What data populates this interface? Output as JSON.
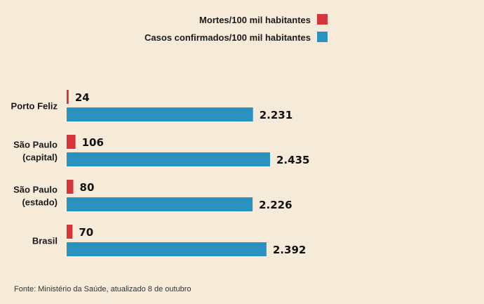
{
  "chart_data": {
    "type": "bar",
    "orientation": "horizontal",
    "categories": [
      [
        "Porto Feliz"
      ],
      [
        "São Paulo",
        "(capital)"
      ],
      [
        "São Paulo",
        "(estado)"
      ],
      [
        "Brasil"
      ]
    ],
    "series": [
      {
        "name": "Mortes/100 mil habitantes",
        "color": "#d4343a",
        "values": [
          24,
          106,
          80,
          70
        ],
        "labels": [
          "24",
          "106",
          "80",
          "70"
        ]
      },
      {
        "name": "Casos confirmados/100 mil habitantes",
        "color": "#2a92c1",
        "values": [
          2231,
          2435,
          2226,
          2392
        ],
        "labels": [
          "2.231",
          "2.435",
          "2.226",
          "2.392"
        ]
      }
    ],
    "xlim": [
      0,
      2750
    ],
    "grid": false,
    "legend_position": "top-right"
  },
  "source": "Fonte: Ministério da Saúde, atualizado 8 de outubro"
}
